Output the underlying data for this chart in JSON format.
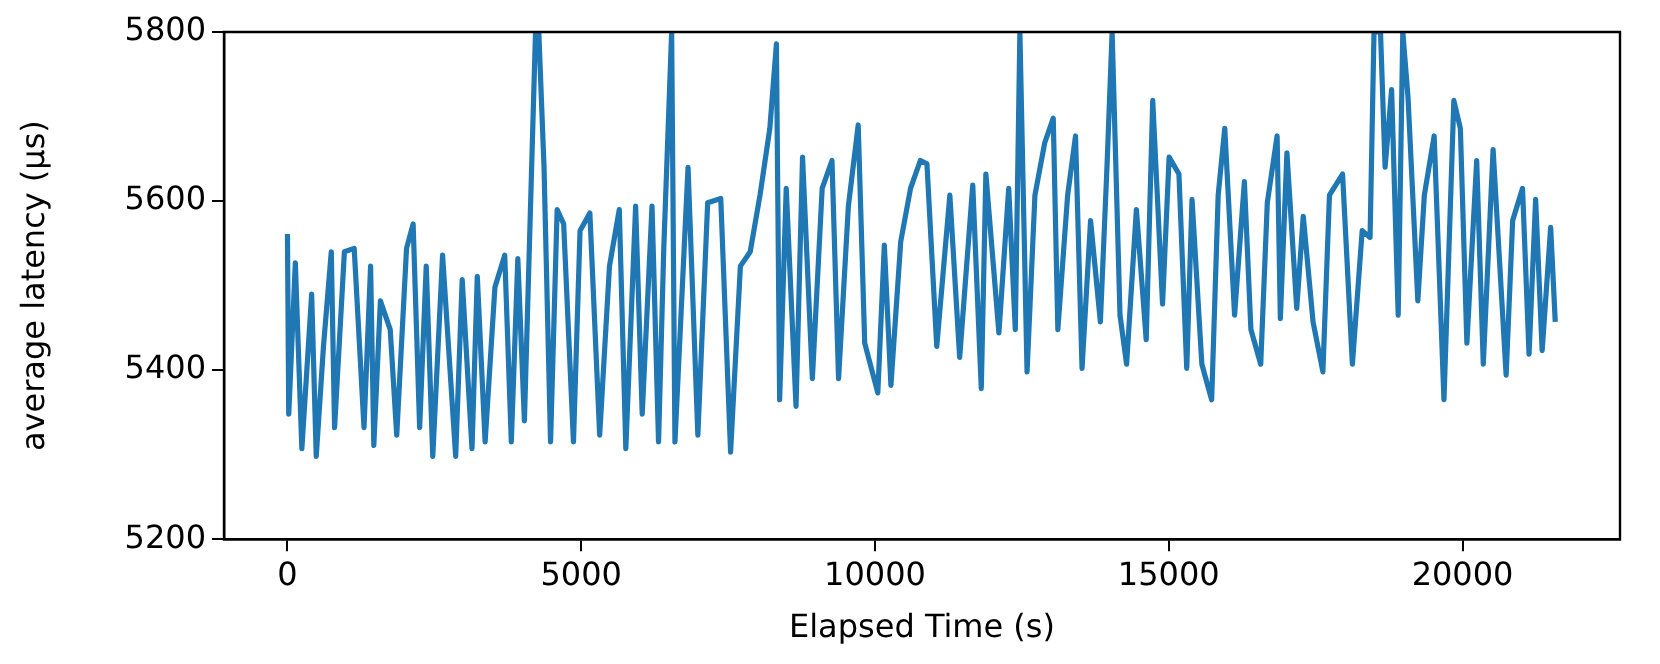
{
  "chart_data": {
    "type": "line",
    "xlabel": "Elapsed Time (s)",
    "ylabel": "average latency (µs)",
    "x": [
      0,
      22,
      134,
      245,
      412,
      490,
      613,
      746,
      802,
      969,
      1136,
      1303,
      1415,
      1470,
      1582,
      1749,
      1860,
      2027,
      2139,
      2250,
      2362,
      2473,
      2640,
      2863,
      2974,
      3141,
      3231,
      3364,
      3531,
      3698,
      3810,
      3921,
      4033,
      4222,
      4278,
      4367,
      4478,
      4590,
      4701,
      4868,
      4980,
      5147,
      5314,
      5481,
      5648,
      5759,
      5926,
      6038,
      6205,
      6316,
      6405,
      6539,
      6595,
      6818,
      6985,
      7152,
      7375,
      7542,
      7709,
      7876,
      8043,
      8210,
      8322,
      8377,
      8489,
      8656,
      8767,
      8934,
      9101,
      9268,
      9380,
      9547,
      9714,
      9825,
      10048,
      10159,
      10271,
      10438,
      10605,
      10772,
      10884,
      11051,
      11274,
      11441,
      11664,
      11809,
      11887,
      12109,
      12276,
      12388,
      12466,
      12588,
      12722,
      12889,
      13034,
      13112,
      13279,
      13413,
      13524,
      13669,
      13836,
      13948,
      14036,
      14170,
      14282,
      14449,
      14616,
      14727,
      14894,
      15006,
      15173,
      15306,
      15396,
      15563,
      15730,
      15841,
      15953,
      16120,
      16287,
      16398,
      16565,
      16677,
      16844,
      16899,
      17011,
      17178,
      17289,
      17456,
      17623,
      17735,
      17958,
      18125,
      18292,
      18426,
      18493,
      18604,
      18682,
      18793,
      18905,
      18983,
      19072,
      19239,
      19350,
      19517,
      19684,
      19852,
      19963,
      20074,
      20241,
      20353,
      20520,
      20742,
      20853,
      21021,
      21132,
      21244,
      21355,
      21500,
      21578
    ],
    "series": [
      {
        "color": "#1f77b4",
        "values": [
          5561,
          5348,
          5527,
          5307,
          5490,
          5298,
          5428,
          5540,
          5332,
          5540,
          5544,
          5332,
          5523,
          5311,
          5482,
          5448,
          5323,
          5544,
          5573,
          5332,
          5523,
          5298,
          5536,
          5298,
          5507,
          5307,
          5511,
          5315,
          5498,
          5536,
          5315,
          5532,
          5340,
          5800,
          5800,
          5640,
          5315,
          5590,
          5573,
          5315,
          5565,
          5586,
          5323,
          5523,
          5590,
          5307,
          5594,
          5348,
          5594,
          5315,
          5544,
          5800,
          5315,
          5640,
          5323,
          5598,
          5603,
          5303,
          5523,
          5540,
          5607,
          5686,
          5786,
          5365,
          5615,
          5357,
          5652,
          5390,
          5615,
          5648,
          5390,
          5594,
          5690,
          5432,
          5373,
          5548,
          5382,
          5552,
          5615,
          5648,
          5644,
          5428,
          5607,
          5415,
          5619,
          5378,
          5632,
          5444,
          5615,
          5448,
          5800,
          5398,
          5607,
          5669,
          5698,
          5448,
          5607,
          5677,
          5402,
          5577,
          5457,
          5640,
          5800,
          5465,
          5407,
          5590,
          5436,
          5719,
          5478,
          5652,
          5632,
          5402,
          5602,
          5407,
          5365,
          5607,
          5686,
          5465,
          5623,
          5448,
          5407,
          5598,
          5677,
          5461,
          5657,
          5473,
          5582,
          5457,
          5398,
          5607,
          5632,
          5407,
          5565,
          5557,
          5800,
          5800,
          5640,
          5732,
          5465,
          5800,
          5723,
          5482,
          5607,
          5677,
          5365,
          5719,
          5686,
          5432,
          5648,
          5407,
          5661,
          5394,
          5577,
          5615,
          5419,
          5602,
          5423,
          5569,
          5457
        ]
      }
    ],
    "xlim": [
      -1080,
      22680
    ],
    "ylim": [
      5200,
      5800
    ],
    "xticks": [
      0,
      5000,
      10000,
      15000,
      20000
    ],
    "yticks": [
      5200,
      5400,
      5600,
      5800
    ],
    "grid": false,
    "legend": false,
    "marker": "none",
    "line_style": "solid"
  }
}
